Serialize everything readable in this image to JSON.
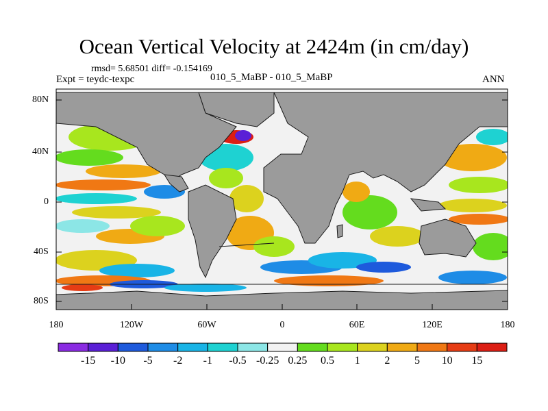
{
  "figure": {
    "title": "Ocean Vertical Velocity at 2424m (in cm/day)",
    "stats": "rmsd= 5.68501 diff= -0.154169",
    "expt": "Expt = teydc-texpc",
    "case": "010_5_MaBP - 010_5_MaBP",
    "season": "ANN"
  },
  "axes": {
    "lat_labels": [
      "80N",
      "40N",
      "0",
      "40S",
      "80S"
    ],
    "lon_labels": [
      "180",
      "120W",
      "60W",
      "0",
      "60E",
      "120E",
      "180"
    ]
  },
  "colorbar": {
    "labels": [
      "-15",
      "-10",
      "-5",
      "-2",
      "-1",
      "-0.5",
      "-0.25",
      "0.25",
      "0.5",
      "1",
      "2",
      "5",
      "10",
      "15"
    ],
    "colors": [
      "#8a2be2",
      "#5a1fd6",
      "#1e5adc",
      "#1e8ce6",
      "#19b4e6",
      "#1ed2d2",
      "#8ce6e6",
      "#f2f2f2",
      "#64dc1e",
      "#a8e61e",
      "#dcd21e",
      "#f0aa14",
      "#f07814",
      "#e63c14",
      "#dc1e14"
    ]
  },
  "colors": {
    "land": "#9b9b9b",
    "coast": "#1a1a1a"
  }
}
